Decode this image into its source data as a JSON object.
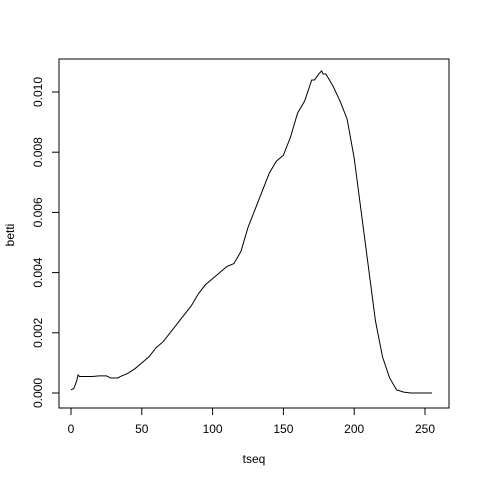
{
  "chart_data": {
    "type": "line",
    "title": "",
    "xlabel": "tseq",
    "ylabel": "betti",
    "xlim": [
      0,
      256
    ],
    "ylim": [
      0,
      0.0107
    ],
    "xticks": [
      0,
      50,
      100,
      150,
      200,
      250
    ],
    "yticks": [
      0.0,
      0.002,
      0.004,
      0.006,
      0.008,
      0.01
    ],
    "ytick_labels": [
      "0.000",
      "0.002",
      "0.004",
      "0.006",
      "0.008",
      "0.010"
    ],
    "xtick_labels": [
      "0",
      "50",
      "100",
      "150",
      "200",
      "250"
    ],
    "grid": false,
    "line_color": "#000000",
    "series": [
      {
        "x": [
          0,
          2,
          4,
          5,
          6,
          8,
          10,
          15,
          20,
          25,
          28,
          30,
          33,
          35,
          40,
          45,
          50,
          55,
          60,
          65,
          70,
          75,
          80,
          85,
          90,
          95,
          100,
          105,
          110,
          115,
          120,
          125,
          130,
          135,
          140,
          145,
          150,
          155,
          160,
          165,
          170,
          172,
          175,
          177,
          178,
          180,
          185,
          190,
          195,
          200,
          205,
          210,
          215,
          220,
          225,
          230,
          235,
          240,
          245,
          250,
          255
        ],
        "y": [
          0.0001,
          0.00015,
          0.0004,
          0.0006,
          0.00055,
          0.00055,
          0.00055,
          0.00055,
          0.00057,
          0.00057,
          0.0005,
          0.0005,
          0.0005,
          0.00055,
          0.00065,
          0.0008,
          0.001,
          0.0012,
          0.0015,
          0.0017,
          0.002,
          0.0023,
          0.0026,
          0.0029,
          0.0033,
          0.0036,
          0.0038,
          0.004,
          0.0042,
          0.0043,
          0.0047,
          0.0055,
          0.0061,
          0.0067,
          0.0073,
          0.0077,
          0.0079,
          0.0085,
          0.0093,
          0.0097,
          0.0104,
          0.0104,
          0.0106,
          0.0107,
          0.0106,
          0.0106,
          0.0102,
          0.0097,
          0.0091,
          0.0078,
          0.006,
          0.0042,
          0.0024,
          0.0012,
          0.0005,
          0.0001,
          3e-05,
          0.0,
          0.0,
          0.0,
          0.0
        ]
      }
    ]
  }
}
